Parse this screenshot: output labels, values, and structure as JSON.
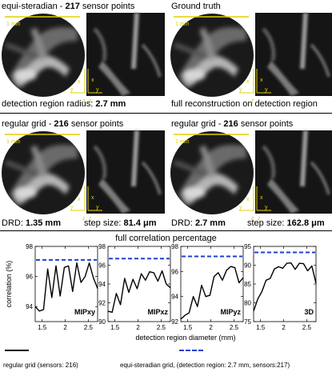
{
  "panels": [
    {
      "prefix": "equi-steradian - ",
      "bold": "217",
      "suffix": " sensor points"
    },
    {
      "prefix": "Ground truth",
      "bold": "",
      "suffix": ""
    },
    {
      "prefix": "regular grid - ",
      "bold": "216",
      "suffix": " sensor points"
    },
    {
      "prefix": "regular grid - ",
      "bold": "216",
      "suffix": " sensor points"
    }
  ],
  "scale_label": "1 mm",
  "axis_letters": {
    "x": "x",
    "y": "y",
    "z": "z"
  },
  "captions": {
    "top_left_text": "detection region radius: ",
    "top_left_bold": "2.7 mm",
    "top_right_text": "full reconstruction on detection region",
    "mid_left_a_text": "DRD: ",
    "mid_left_a_bold": "1.35 mm",
    "mid_left_b_text": "step size: ",
    "mid_left_b_bold": "81.4 μm",
    "mid_right_a_text": "DRD: ",
    "mid_right_a_bold": "2.7 mm",
    "mid_right_b_text": "step size: ",
    "mid_right_b_bold": "162.8 μm"
  },
  "chart_section_title": "full correlation percentage",
  "colors": {
    "line": "#000000",
    "ref": "#2040d0"
  },
  "chart_data": [
    {
      "type": "line",
      "panel_label": "MIPxy",
      "ylabel": "correlation (%)",
      "xlabel": "",
      "ylim": [
        93,
        98
      ],
      "yticks": [
        94,
        96,
        98
      ],
      "xlim": [
        1.35,
        2.7
      ],
      "xticks": [
        1.5,
        2,
        2.5
      ],
      "x": [
        1.35,
        1.44,
        1.53,
        1.62,
        1.71,
        1.8,
        1.89,
        1.98,
        2.07,
        2.16,
        2.25,
        2.34,
        2.43,
        2.52,
        2.61,
        2.7
      ],
      "series": [
        {
          "name": "regular grid (sensors: 216)",
          "values": [
            94.0,
            93.7,
            93.8,
            96.5,
            94.6,
            96.7,
            94.7,
            96.6,
            96.7,
            95.0,
            96.9,
            95.6,
            96.0,
            96.9,
            95.9,
            95.2
          ]
        },
        {
          "name": "equi-steradian grid, (detection region: 2.7 mm, sensors:217)",
          "constant": 97.1
        }
      ]
    },
    {
      "type": "line",
      "panel_label": "MIPxz",
      "ylabel": "",
      "xlabel": "",
      "ylim": [
        90,
        98
      ],
      "yticks": [
        90,
        92,
        94,
        96,
        98
      ],
      "xlim": [
        1.35,
        2.7
      ],
      "xticks": [
        1.5,
        2,
        2.5
      ],
      "x": [
        1.35,
        1.44,
        1.53,
        1.62,
        1.71,
        1.8,
        1.89,
        1.98,
        2.07,
        2.16,
        2.25,
        2.34,
        2.43,
        2.52,
        2.61,
        2.7
      ],
      "series": [
        {
          "name": "regular grid (sensors: 216)",
          "values": [
            91.1,
            91.0,
            93.0,
            91.8,
            94.6,
            93.1,
            94.5,
            93.5,
            95.1,
            94.4,
            95.3,
            95.2,
            94.3,
            95.4,
            94.0,
            93.6
          ]
        },
        {
          "name": "equi-steradian grid, (detection region: 2.7 mm, sensors:217)",
          "constant": 96.7
        }
      ]
    },
    {
      "type": "line",
      "panel_label": "MIPyz",
      "ylabel": "",
      "xlabel": "detection region diameter (mm)",
      "ylim": [
        92,
        98
      ],
      "yticks": [
        92,
        94,
        96,
        98
      ],
      "xlim": [
        1.35,
        2.7
      ],
      "xticks": [
        1.5,
        2,
        2.5
      ],
      "x": [
        1.35,
        1.44,
        1.53,
        1.62,
        1.71,
        1.8,
        1.89,
        1.98,
        2.07,
        2.16,
        2.25,
        2.34,
        2.43,
        2.52,
        2.61,
        2.7
      ],
      "series": [
        {
          "name": "regular grid (sensors: 216)",
          "values": [
            92.2,
            92.5,
            92.7,
            94.0,
            93.2,
            94.9,
            94.0,
            94.1,
            95.6,
            95.9,
            95.3,
            96.1,
            96.4,
            96.3,
            95.1,
            95.5
          ]
        },
        {
          "name": "equi-steradian grid, (detection region: 2.7 mm, sensors:217)",
          "constant": 97.2
        }
      ]
    },
    {
      "type": "line",
      "panel_label": "3D",
      "ylabel": "",
      "xlabel": "",
      "ylim": [
        75,
        95
      ],
      "yticks": [
        75,
        80,
        85,
        90,
        95
      ],
      "xlim": [
        1.35,
        2.7
      ],
      "xticks": [
        1.5,
        2,
        2.5
      ],
      "x": [
        1.35,
        1.44,
        1.53,
        1.62,
        1.71,
        1.8,
        1.89,
        1.98,
        2.07,
        2.16,
        2.25,
        2.34,
        2.43,
        2.52,
        2.61,
        2.7
      ],
      "series": [
        {
          "name": "regular grid (sensors: 216)",
          "values": [
            77.8,
            81.0,
            83.0,
            86.0,
            86.5,
            89.0,
            89.6,
            89.2,
            90.5,
            90.6,
            88.9,
            90.5,
            90.4,
            88.5,
            89.8,
            85.2
          ]
        },
        {
          "name": "equi-steradian grid, (detection region: 2.7 mm, sensors:217)",
          "constant": 93.4
        }
      ]
    }
  ],
  "legend": {
    "regular": "regular grid (sensors: 216)",
    "equi": "equi-steradian grid, (detection region: 2.7 mm, sensors:217)"
  }
}
